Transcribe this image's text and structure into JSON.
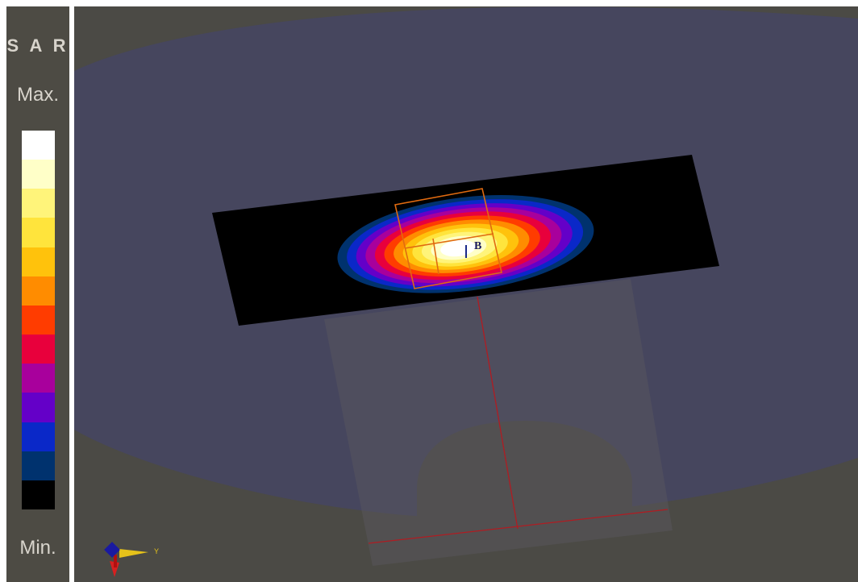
{
  "legend": {
    "title": "S A R",
    "max_label": "Max.",
    "min_label": "Min.",
    "colors": [
      "#ffffff",
      "#ffffc8",
      "#fff47a",
      "#ffe43c",
      "#ffc20c",
      "#ff8c00",
      "#ff3c00",
      "#e8003c",
      "#a8009c",
      "#6400c8",
      "#0a28c8",
      "#00326e",
      "#000000"
    ]
  },
  "viewport": {
    "background": "#4b4a45",
    "phantom_color": "#46465e",
    "plane_color": "#000000",
    "grid_line_color": "#b01c22",
    "probe_box_color": "#e06a10",
    "probe_marker_label": "B",
    "axis_triad": {
      "y_label": "Y"
    }
  }
}
